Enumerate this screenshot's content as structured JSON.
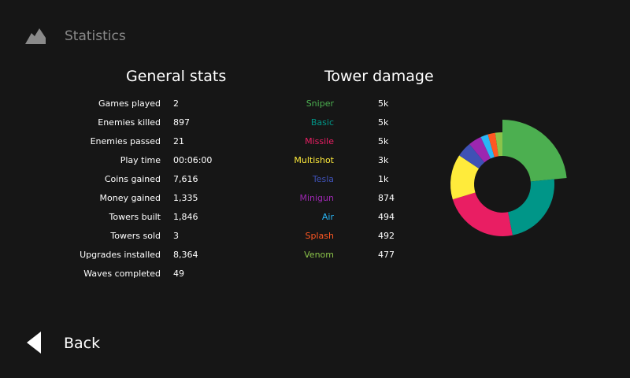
{
  "header": {
    "title": "Statistics",
    "icon": "mountain-icon"
  },
  "general": {
    "title": "General stats",
    "rows": [
      {
        "label": "Games played",
        "value": "2"
      },
      {
        "label": "Enemies killed",
        "value": "897"
      },
      {
        "label": "Enemies passed",
        "value": "21"
      },
      {
        "label": "Play time",
        "value": "00:06:00"
      },
      {
        "label": "Coins gained",
        "value": "7,616"
      },
      {
        "label": "Money gained",
        "value": "1,335"
      },
      {
        "label": "Towers built",
        "value": "1,846"
      },
      {
        "label": "Towers sold",
        "value": "3"
      },
      {
        "label": "Upgrades installed",
        "value": "8,364"
      },
      {
        "label": "Waves completed",
        "value": "49"
      }
    ]
  },
  "tower": {
    "title": "Tower damage",
    "rows": [
      {
        "label": "Sniper",
        "value": "5k",
        "color": "#4caf50"
      },
      {
        "label": "Basic",
        "value": "5k",
        "color": "#009688"
      },
      {
        "label": "Missile",
        "value": "5k",
        "color": "#e91e63"
      },
      {
        "label": "Multishot",
        "value": "3k",
        "color": "#ffeb3b"
      },
      {
        "label": "Tesla",
        "value": "1k",
        "color": "#3f51b5"
      },
      {
        "label": "Minigun",
        "value": "874",
        "color": "#9c27b0"
      },
      {
        "label": "Air",
        "value": "494",
        "color": "#29b6f6"
      },
      {
        "label": "Splash",
        "value": "492",
        "color": "#ff5722"
      },
      {
        "label": "Venom",
        "value": "477",
        "color": "#8bc34a"
      }
    ]
  },
  "chart_data": {
    "type": "pie",
    "style": "donut",
    "highlighted": "Sniper",
    "categories": [
      "Sniper",
      "Basic",
      "Missile",
      "Multishot",
      "Tesla",
      "Minigun",
      "Air",
      "Splash",
      "Venom"
    ],
    "values": [
      5000,
      5000,
      5000,
      3000,
      1000,
      874,
      494,
      492,
      477
    ],
    "colors": [
      "#4caf50",
      "#009688",
      "#e91e63",
      "#ffeb3b",
      "#3f51b5",
      "#9c27b0",
      "#29b6f6",
      "#ff5722",
      "#8bc34a"
    ]
  },
  "back": {
    "label": "Back",
    "icon": "back-arrow-icon"
  }
}
